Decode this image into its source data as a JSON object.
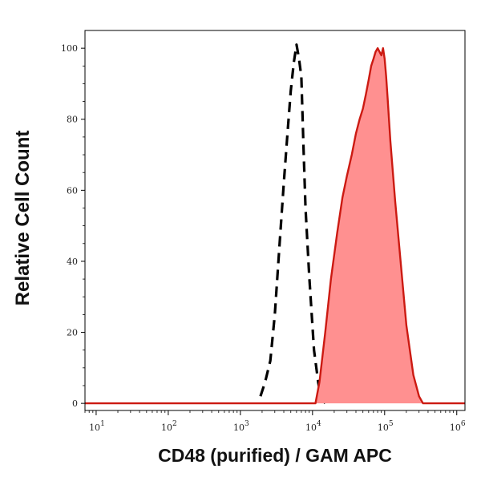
{
  "chart_data": {
    "type": "area",
    "title": "",
    "xlabel": "CD48 (purified) / GAM APC",
    "ylabel": "Relative Cell Count",
    "x_scale": "log",
    "xlim": [
      7,
      1300000
    ],
    "ylim": [
      -2,
      105
    ],
    "x_ticks": [
      {
        "value": 10,
        "base": "10",
        "exp": "1"
      },
      {
        "value": 100,
        "base": "10",
        "exp": "2"
      },
      {
        "value": 1000,
        "base": "10",
        "exp": "3"
      },
      {
        "value": 10000,
        "base": "10",
        "exp": "4"
      },
      {
        "value": 100000,
        "base": "10",
        "exp": "5"
      },
      {
        "value": 1000000,
        "base": "10",
        "exp": "6"
      }
    ],
    "y_ticks": [
      0,
      20,
      40,
      60,
      80,
      100
    ],
    "grid": false,
    "series": [
      {
        "style": "dashed-black",
        "color": "#000000",
        "x": [
          1900,
          2200,
          2600,
          3000,
          3500,
          4000,
          4500,
          5000,
          5500,
          6000,
          6500,
          7000,
          7500,
          8000,
          9000,
          10500,
          12000,
          13000,
          15000
        ],
        "y": [
          2,
          6,
          12,
          25,
          45,
          62,
          76,
          88,
          96,
          101,
          97,
          92,
          72,
          55,
          36,
          15,
          6,
          2,
          0
        ]
      },
      {
        "style": "filled-red",
        "color": "#cc1a12",
        "fill": "#ff9090",
        "x": [
          7,
          11000,
          12500,
          15000,
          18000,
          22000,
          26000,
          30000,
          35000,
          40000,
          45000,
          50000,
          55000,
          60000,
          65000,
          70000,
          75000,
          80000,
          85000,
          90000,
          95000,
          100000,
          105000,
          110000,
          120000,
          140000,
          170000,
          200000,
          250000,
          300000,
          340000,
          1300000
        ],
        "y": [
          0,
          0,
          6,
          20,
          35,
          48,
          58,
          64,
          70,
          76,
          80,
          83,
          87,
          91,
          95,
          97,
          99,
          100,
          99,
          98,
          100,
          97,
          92,
          86,
          74,
          57,
          38,
          22,
          8,
          2,
          0,
          0
        ]
      }
    ]
  }
}
